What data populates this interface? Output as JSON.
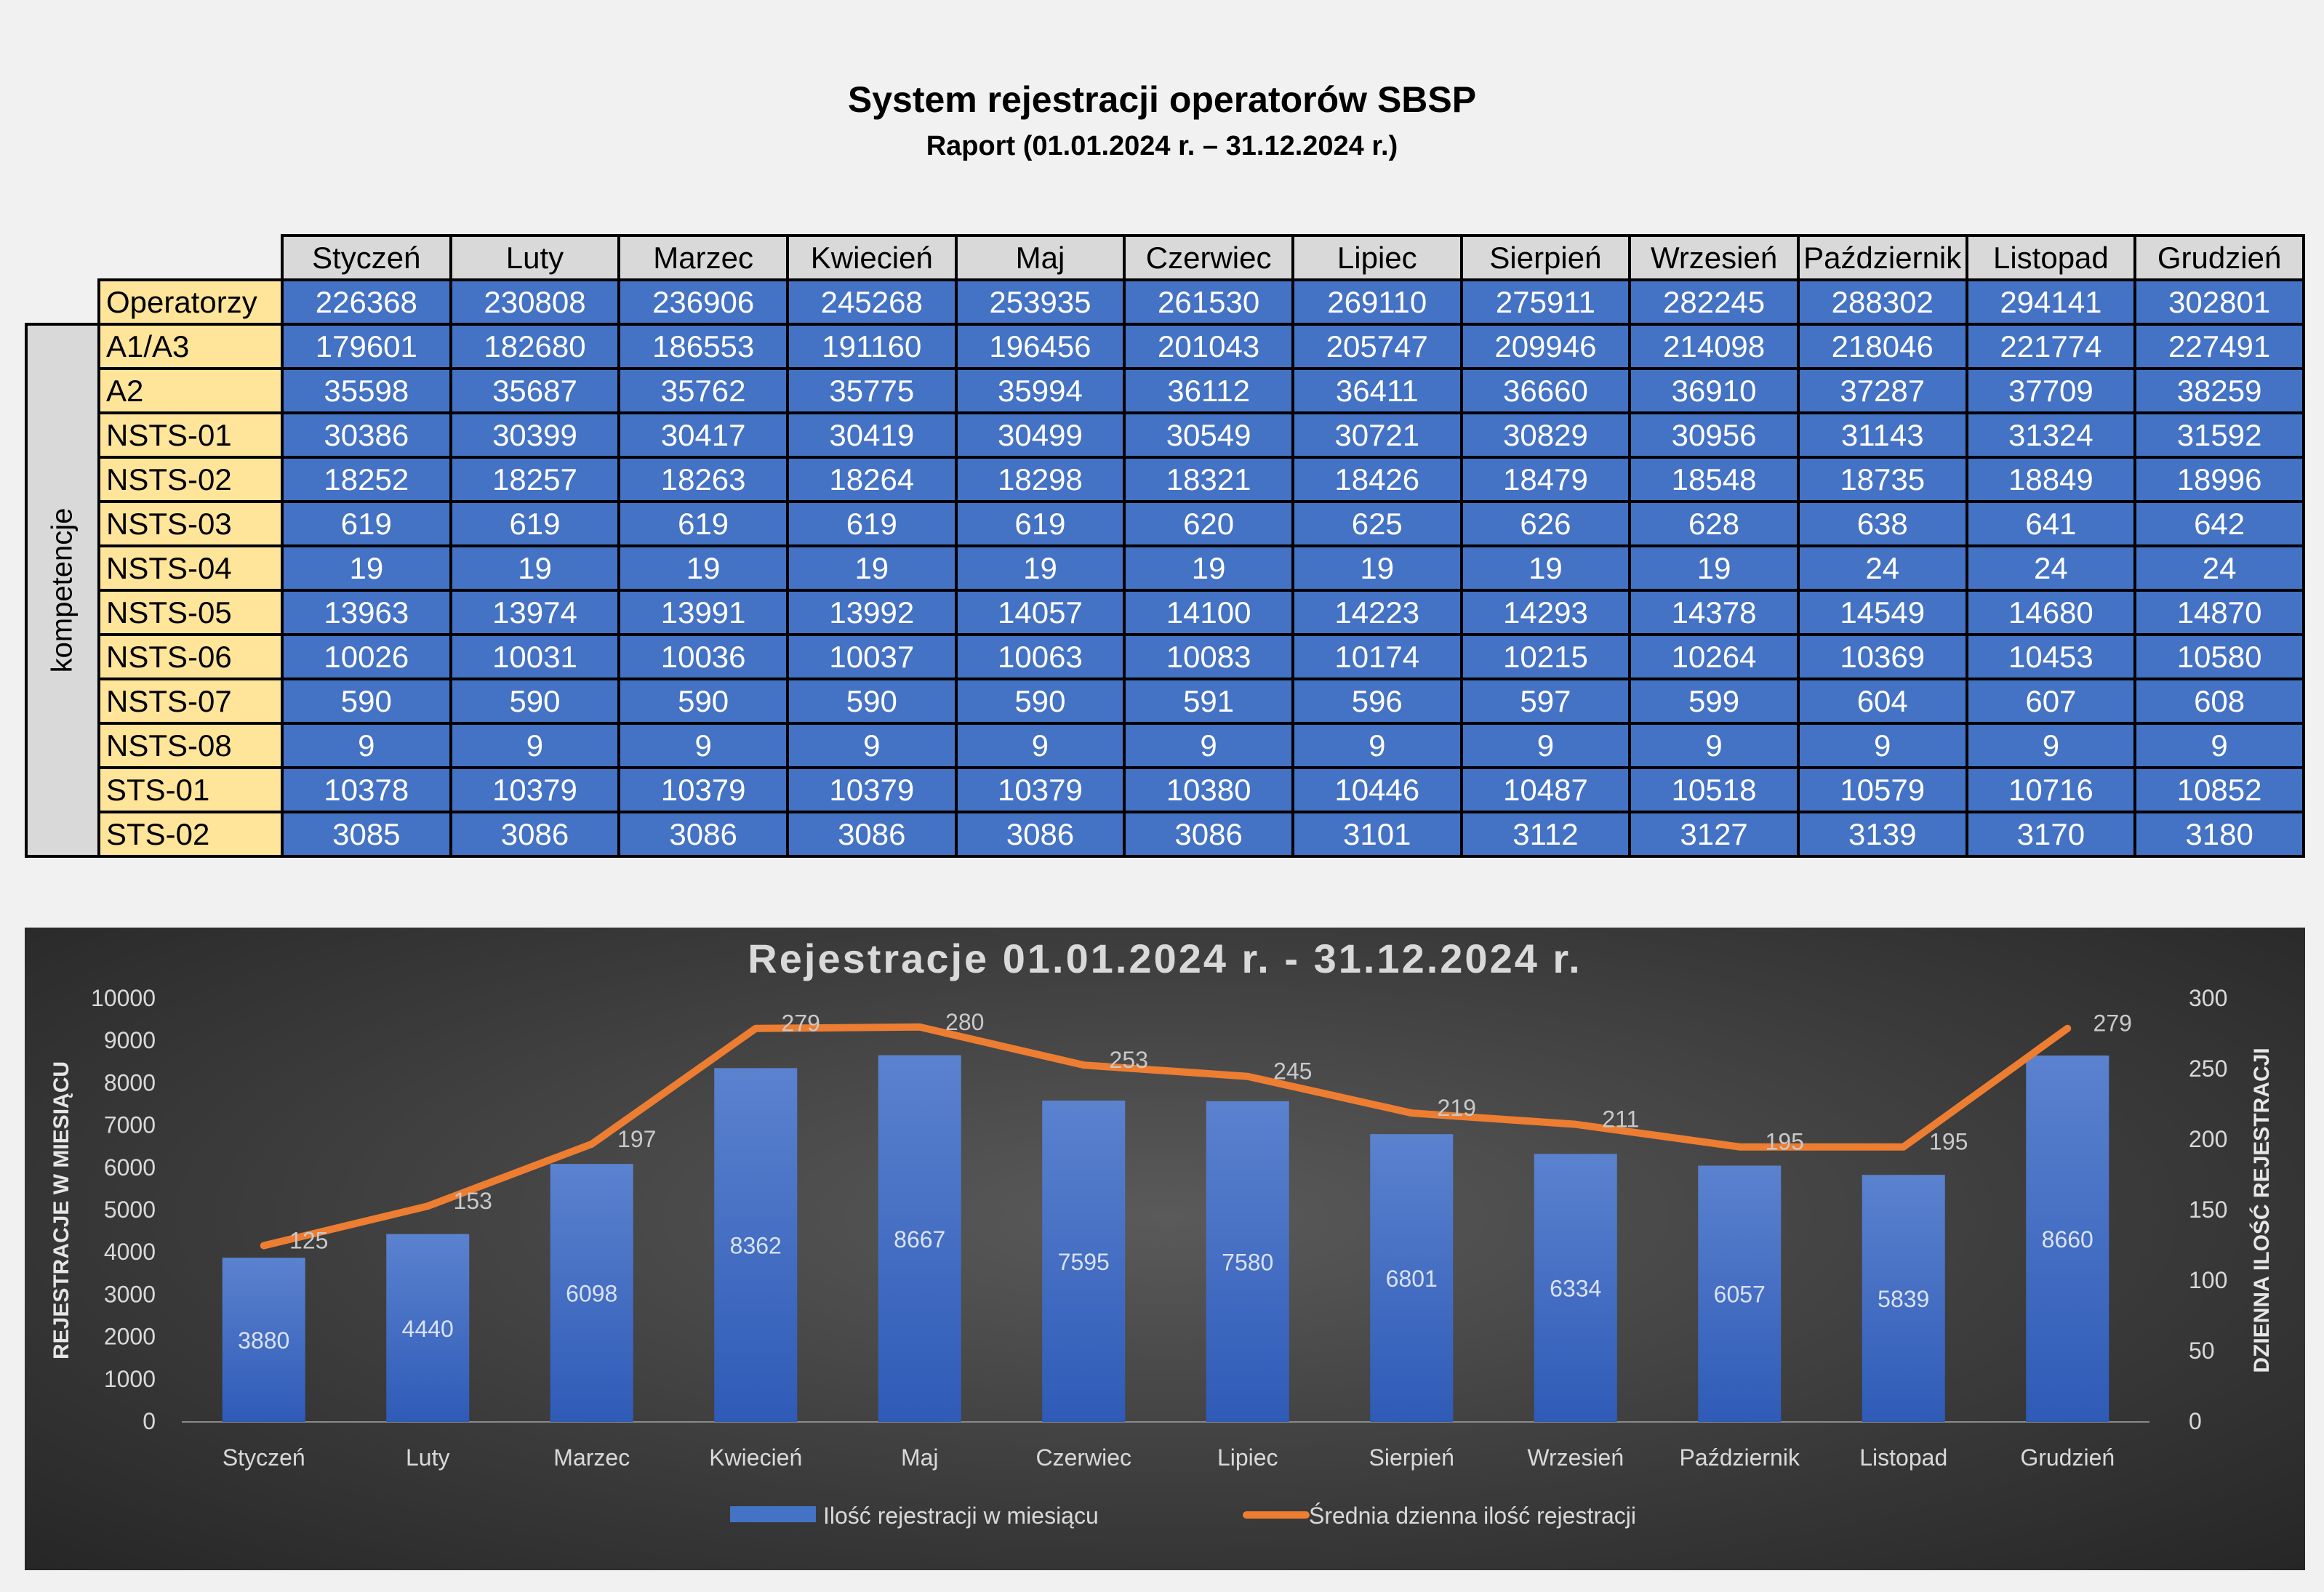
{
  "header": {
    "title": "System rejestracji operatorów SBSP",
    "subtitle": "Raport (01.01.2024 r. – 31.12.2024 r.)"
  },
  "table": {
    "group_label": "kompetencje",
    "months": [
      "Styczeń",
      "Luty",
      "Marzec",
      "Kwiecień",
      "Maj",
      "Czerwiec",
      "Lipiec",
      "Sierpień",
      "Wrzesień",
      "Październik",
      "Listopad",
      "Grudzień"
    ],
    "rows": [
      {
        "label": "Operatorzy",
        "values": [
          "226368",
          "230808",
          "236906",
          "245268",
          "253935",
          "261530",
          "269110",
          "275911",
          "282245",
          "288302",
          "294141",
          "302801"
        ]
      },
      {
        "label": "A1/A3",
        "values": [
          "179601",
          "182680",
          "186553",
          "191160",
          "196456",
          "201043",
          "205747",
          "209946",
          "214098",
          "218046",
          "221774",
          "227491"
        ]
      },
      {
        "label": "A2",
        "values": [
          "35598",
          "35687",
          "35762",
          "35775",
          "35994",
          "36112",
          "36411",
          "36660",
          "36910",
          "37287",
          "37709",
          "38259"
        ]
      },
      {
        "label": "NSTS-01",
        "values": [
          "30386",
          "30399",
          "30417",
          "30419",
          "30499",
          "30549",
          "30721",
          "30829",
          "30956",
          "31143",
          "31324",
          "31592"
        ]
      },
      {
        "label": "NSTS-02",
        "values": [
          "18252",
          "18257",
          "18263",
          "18264",
          "18298",
          "18321",
          "18426",
          "18479",
          "18548",
          "18735",
          "18849",
          "18996"
        ]
      },
      {
        "label": "NSTS-03",
        "values": [
          "619",
          "619",
          "619",
          "619",
          "619",
          "620",
          "625",
          "626",
          "628",
          "638",
          "641",
          "642"
        ]
      },
      {
        "label": "NSTS-04",
        "values": [
          "19",
          "19",
          "19",
          "19",
          "19",
          "19",
          "19",
          "19",
          "19",
          "24",
          "24",
          "24"
        ]
      },
      {
        "label": "NSTS-05",
        "values": [
          "13963",
          "13974",
          "13991",
          "13992",
          "14057",
          "14100",
          "14223",
          "14293",
          "14378",
          "14549",
          "14680",
          "14870"
        ]
      },
      {
        "label": "NSTS-06",
        "values": [
          "10026",
          "10031",
          "10036",
          "10037",
          "10063",
          "10083",
          "10174",
          "10215",
          "10264",
          "10369",
          "10453",
          "10580"
        ]
      },
      {
        "label": "NSTS-07",
        "values": [
          "590",
          "590",
          "590",
          "590",
          "590",
          "591",
          "596",
          "597",
          "599",
          "604",
          "607",
          "608"
        ]
      },
      {
        "label": "NSTS-08",
        "values": [
          "9",
          "9",
          "9",
          "9",
          "9",
          "9",
          "9",
          "9",
          "9",
          "9",
          "9",
          "9"
        ]
      },
      {
        "label": "STS-01",
        "values": [
          "10378",
          "10379",
          "10379",
          "10379",
          "10379",
          "10380",
          "10446",
          "10487",
          "10518",
          "10579",
          "10716",
          "10852"
        ]
      },
      {
        "label": "STS-02",
        "values": [
          "3085",
          "3086",
          "3086",
          "3086",
          "3086",
          "3086",
          "3101",
          "3112",
          "3127",
          "3139",
          "3170",
          "3180"
        ]
      }
    ]
  },
  "chart_data": {
    "type": "bar",
    "title": "Rejestracje 01.01.2024 r. - 31.12.2024 r.",
    "categories": [
      "Styczeń",
      "Luty",
      "Marzec",
      "Kwiecień",
      "Maj",
      "Czerwiec",
      "Lipiec",
      "Sierpień",
      "Wrzesień",
      "Październik",
      "Listopad",
      "Grudzień"
    ],
    "series": [
      {
        "name": "Ilość rejestracji w miesiącu",
        "type": "bar",
        "axis": "left",
        "color": "#4472c4",
        "values": [
          3880,
          4440,
          6098,
          8362,
          8667,
          7595,
          7580,
          6801,
          6334,
          6057,
          5839,
          8660
        ]
      },
      {
        "name": "Średnia dzienna ilość rejestracji",
        "type": "line",
        "axis": "right",
        "color": "#ed7d31",
        "values": [
          125,
          153,
          197,
          279,
          280,
          253,
          245,
          219,
          211,
          195,
          195,
          279
        ]
      }
    ],
    "ylabel": "REJESTRACJE W MIESIĄCU",
    "y2label": "DZIENNA ILOŚĆ REJESTRACJI",
    "ylim": [
      0,
      10000
    ],
    "y2lim": [
      0,
      300
    ],
    "yticks": [
      0,
      1000,
      2000,
      3000,
      4000,
      5000,
      6000,
      7000,
      8000,
      9000,
      10000
    ],
    "y2ticks": [
      0,
      50,
      100,
      150,
      200,
      250,
      300
    ],
    "grid": false,
    "legend_position": "bottom"
  }
}
